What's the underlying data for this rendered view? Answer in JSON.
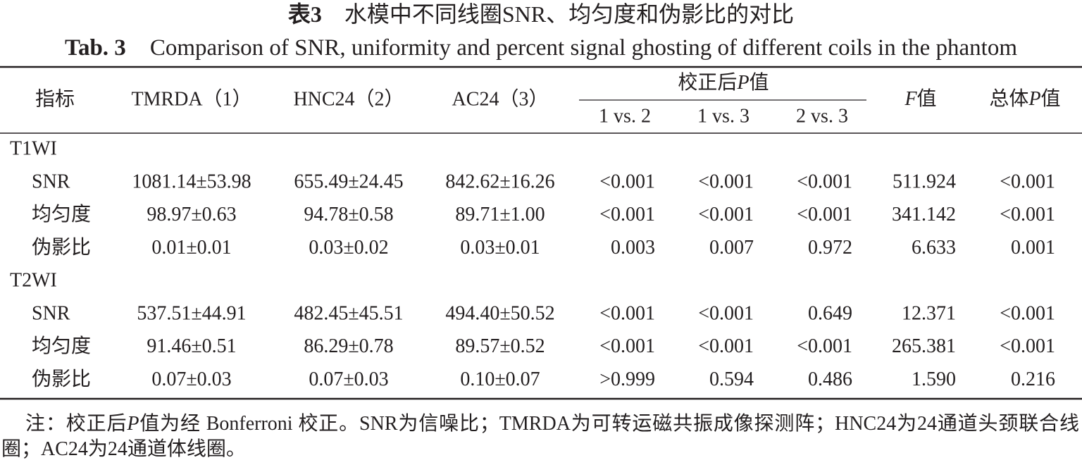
{
  "title_cn": {
    "label": "表3",
    "text": "水模中不同线圈SNR、均匀度和伪影比的对比"
  },
  "title_en": {
    "label": "Tab. 3",
    "text": "Comparison of SNR, uniformity and percent signal ghosting of different coils in the phantom"
  },
  "table": {
    "headers": [
      "指标",
      "TMRDA（1）",
      "HNC24（2）",
      "AC24（3）"
    ],
    "p_group": [
      "校正后",
      "P",
      "值"
    ],
    "p_subheaders": [
      "1 vs. 2",
      "1 vs. 3",
      "2 vs. 3"
    ],
    "f_header": [
      "F",
      "值"
    ],
    "overall_p_header": [
      "总体",
      "P",
      "值"
    ],
    "groups": [
      {
        "name": "T1WI",
        "rows": [
          [
            "SNR",
            "1081.14±53.98",
            "655.49±24.45",
            "842.62±16.26",
            "<0.001",
            "<0.001",
            "<0.001",
            "511.924",
            "<0.001"
          ],
          [
            "均匀度",
            "98.97±0.63",
            "94.78±0.58",
            "89.71±1.00",
            "<0.001",
            "<0.001",
            "<0.001",
            "341.142",
            "<0.001"
          ],
          [
            "伪影比",
            "0.01±0.01",
            "0.03±0.02",
            "0.03±0.01",
            "0.003",
            "0.007",
            "0.972",
            "6.633",
            "0.001"
          ]
        ]
      },
      {
        "name": "T2WI",
        "rows": [
          [
            "SNR",
            "537.51±44.91",
            "482.45±45.51",
            "494.40±50.52",
            "<0.001",
            "<0.001",
            "0.649",
            "12.371",
            "<0.001"
          ],
          [
            "均匀度",
            "91.46±0.51",
            "86.29±0.78",
            "89.57±0.52",
            "<0.001",
            "<0.001",
            "<0.001",
            "265.381",
            "<0.001"
          ],
          [
            "伪影比",
            "0.07±0.03",
            "0.07±0.03",
            "0.10±0.07",
            ">0.999",
            "0.594",
            "0.486",
            "1.590",
            "0.216"
          ]
        ]
      }
    ]
  },
  "note": [
    "注：校正后",
    "P",
    "值为经 Bonferroni 校正。SNR为信噪比；TMRDA为可转运磁共振成像探测阵；HNC24为24通道头颈联合线圈；AC24为24通道体线圈。"
  ]
}
